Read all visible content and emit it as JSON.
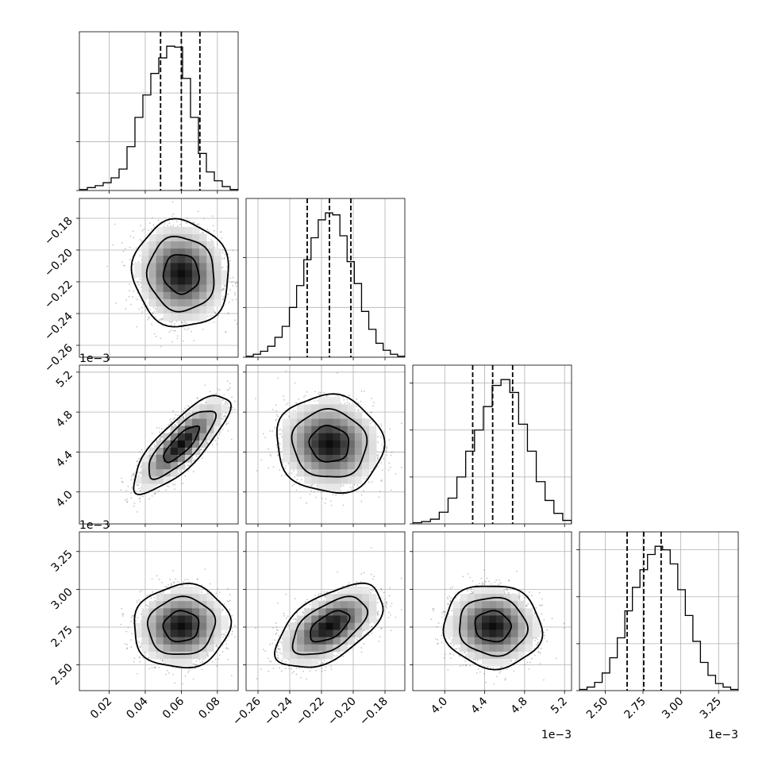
{
  "chart_data": {
    "type": "corner",
    "colors": {
      "axes": "#000000",
      "grid": "#b0b0b0",
      "points": "#7f7f7f"
    },
    "grid": true,
    "params": [
      {
        "range": [
          0.0035,
          0.0915
        ],
        "ticks": [
          0.02,
          0.04,
          0.06,
          0.08
        ],
        "tick_labels": [
          "0.02",
          "0.04",
          "0.06",
          "0.08"
        ],
        "offset": "",
        "quantiles": [
          0.0485,
          0.06,
          0.0703
        ],
        "hist_counts": [
          1,
          3,
          5,
          8,
          13,
          22,
          45,
          75,
          98,
          120,
          136,
          148,
          147,
          115,
          75,
          38,
          19,
          10,
          4,
          1
        ]
      },
      {
        "range": [
          -0.2675,
          -0.1675
        ],
        "ticks": [
          -0.26,
          -0.24,
          -0.22,
          -0.2,
          -0.18
        ],
        "tick_labels": [
          "−0.26",
          "−0.24",
          "−0.22",
          "−0.20",
          "−0.18"
        ],
        "offset": "",
        "quantiles": [
          -0.229,
          -0.215,
          -0.2015
        ],
        "hist_counts": [
          1,
          3,
          6,
          11,
          20,
          31,
          50,
          72,
          98,
          120,
          138,
          145,
          143,
          122,
          96,
          74,
          46,
          28,
          14,
          7,
          3,
          1
        ]
      },
      {
        "range": [
          3.68,
          5.27
        ],
        "ticks": [
          4.0,
          4.4,
          4.8,
          5.2
        ],
        "tick_labels": [
          "4.0",
          "4.4",
          "4.8",
          "5.2"
        ],
        "offset": "1e−3",
        "quantiles": [
          4.28,
          4.48,
          4.68
        ],
        "hist_counts": [
          1,
          2,
          4,
          10,
          22,
          40,
          62,
          80,
          100,
          118,
          123,
          112,
          85,
          62,
          36,
          20,
          9,
          3
        ]
      },
      {
        "range": [
          2.33,
          3.38
        ],
        "ticks": [
          2.5,
          2.75,
          3.0,
          3.25
        ],
        "tick_labels": [
          "2.50",
          "2.75",
          "3.00",
          "3.25"
        ],
        "offset": "1e−3",
        "quantiles": [
          2.645,
          2.755,
          2.87
        ],
        "hist_counts": [
          1,
          3,
          7,
          15,
          28,
          45,
          68,
          88,
          103,
          116,
          123,
          120,
          108,
          86,
          64,
          42,
          24,
          13,
          6,
          3,
          1
        ]
      }
    ],
    "correlations": {
      "1,0": -0.05,
      "2,0": 0.8,
      "2,1": -0.05,
      "3,0": 0.05,
      "3,1": 0.55,
      "3,2": -0.05
    }
  }
}
